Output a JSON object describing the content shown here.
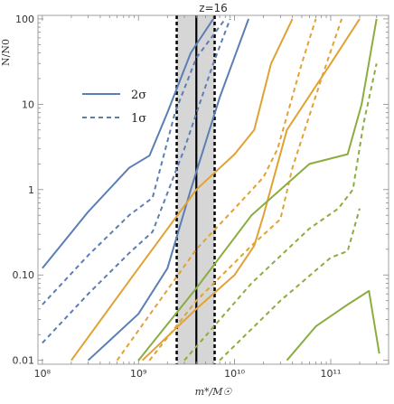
{
  "chart_data": {
    "type": "line",
    "title": "z=16",
    "xlabel": "m*/M☉",
    "ylabel": "N/N0",
    "xscale": "log",
    "yscale": "log",
    "xlim": [
      90000000,
      400000000000
    ],
    "ylim": [
      0.009,
      110
    ],
    "x_ticks": [
      100000000,
      1000000000,
      10000000000,
      100000000000
    ],
    "x_tick_labels": [
      "10⁸",
      "10⁹",
      "10¹⁰",
      "10¹¹"
    ],
    "y_ticks": [
      0.01,
      0.1,
      1,
      10,
      100
    ],
    "y_tick_labels": [
      "0.01",
      "0.10",
      "1",
      "10",
      "100"
    ],
    "colors": {
      "blue": "#5b7fb5",
      "orange": "#e0a234",
      "green": "#8aae3e",
      "band": "#d6d6d6"
    },
    "legend": {
      "position": "upper-left",
      "entries": [
        {
          "label": "2σ",
          "style": "solid",
          "color": "#5b7fb5"
        },
        {
          "label": "1σ",
          "style": "dashed",
          "color": "#5b7fb5"
        }
      ]
    },
    "shaded_band": {
      "x_range": [
        2500000000,
        6200000000
      ],
      "color": "#d6d6d6"
    },
    "vertical_lines": [
      {
        "x": 2500000000,
        "style": "dashed",
        "color": "#000000"
      },
      {
        "x": 4000000000,
        "style": "solid",
        "color": "#000000"
      },
      {
        "x": 6200000000,
        "style": "dashed",
        "color": "#000000"
      }
    ],
    "series": [
      {
        "color": "blue",
        "style": "solid",
        "x": [
          100000000,
          300000000,
          800000000,
          1300000000,
          2000000000,
          3500000000,
          6000000000
        ],
        "y": [
          0.12,
          0.55,
          1.8,
          2.5,
          8,
          40,
          100
        ]
      },
      {
        "color": "blue",
        "style": "solid",
        "x": [
          300000000,
          1000000000,
          2000000000,
          3500000000,
          7000000000,
          14000000000
        ],
        "y": [
          0.01,
          0.035,
          0.12,
          1,
          12,
          100
        ]
      },
      {
        "color": "blue",
        "style": "dashed",
        "x": [
          100000000,
          300000000,
          800000000,
          1400000000,
          2400000000,
          4000000000,
          8000000000
        ],
        "y": [
          0.045,
          0.17,
          0.5,
          0.8,
          8,
          35,
          100
        ]
      },
      {
        "color": "blue",
        "style": "dashed",
        "x": [
          100000000,
          300000000,
          800000000,
          1400000000,
          3000000000,
          6000000000,
          9000000000
        ],
        "y": [
          0.016,
          0.06,
          0.18,
          0.32,
          3,
          30,
          100
        ]
      },
      {
        "color": "orange",
        "style": "solid",
        "x": [
          200000000,
          1000000000,
          4000000000,
          10000000000,
          16000000000,
          24000000000,
          40000000000
        ],
        "y": [
          0.01,
          0.12,
          1,
          2.6,
          5,
          30,
          100
        ]
      },
      {
        "color": "orange",
        "style": "solid",
        "x": [
          1100000000,
          4000000000,
          10000000000,
          16000000000,
          20000000000,
          35000000000,
          100000000000,
          200000000000
        ],
        "y": [
          0.01,
          0.04,
          0.1,
          0.22,
          0.5,
          5,
          30,
          100
        ]
      },
      {
        "color": "orange",
        "style": "dashed",
        "x": [
          600000000,
          4000000000,
          10000000000,
          20000000000,
          28000000000,
          50000000000,
          70000000000
        ],
        "y": [
          0.01,
          0.2,
          0.6,
          1.4,
          3,
          30,
          100
        ]
      },
      {
        "color": "orange",
        "style": "dashed",
        "x": [
          1300000000,
          4000000000,
          15000000000,
          30000000000,
          40000000000,
          80000000000,
          130000000000
        ],
        "y": [
          0.01,
          0.05,
          0.22,
          0.45,
          1.8,
          20,
          100
        ]
      },
      {
        "color": "green",
        "style": "solid",
        "x": [
          1000000000,
          4000000000,
          15000000000,
          60000000000,
          150000000000,
          210000000000,
          300000000000
        ],
        "y": [
          0.01,
          0.07,
          0.5,
          2,
          2.6,
          10,
          100
        ]
      },
      {
        "color": "green",
        "style": "solid",
        "x": [
          35000000000,
          70000000000,
          150000000000,
          250000000000,
          320000000000
        ],
        "y": [
          0.01,
          0.025,
          0.045,
          0.065,
          0.012
        ]
      },
      {
        "color": "green",
        "style": "dashed",
        "x": [
          3000000000,
          15000000000,
          60000000000,
          120000000000,
          170000000000,
          220000000000,
          300000000000
        ],
        "y": [
          0.01,
          0.08,
          0.35,
          0.6,
          1,
          6,
          30
        ]
      },
      {
        "color": "green",
        "style": "dashed",
        "x": [
          7000000000,
          30000000000,
          100000000000,
          150000000000,
          200000000000
        ],
        "y": [
          0.01,
          0.05,
          0.16,
          0.19,
          0.6
        ]
      }
    ]
  }
}
